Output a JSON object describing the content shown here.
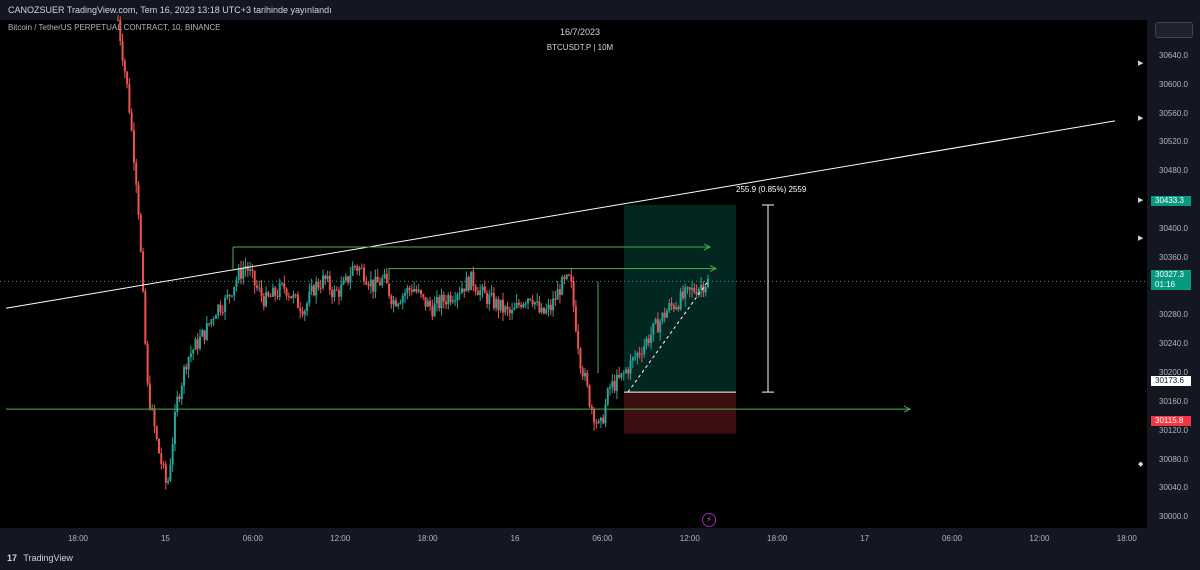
{
  "publisher_line": "CANOZSUER TradingView.com, Tem 16, 2023 13:18 UTC+3 tarihinde yayınlandı",
  "symbol_title": "Bitcoin / TetherUS PERPETUAL CONTRACT, 10, BINANCE",
  "center_date": "16/7/2023",
  "center_ticker": "BTCUSDT.P | 10M",
  "price_ticks": [
    "30640.0",
    "30600.0",
    "30560.0",
    "30520.0",
    "30480.0",
    "30440.0",
    "30400.0",
    "30360.0",
    "30320.0",
    "30280.0",
    "30240.0",
    "30200.0",
    "30160.0",
    "30120.0",
    "30080.0",
    "30040.0",
    "30000.0"
  ],
  "time_ticks": [
    "18:00",
    "15",
    "06:00",
    "12:00",
    "18:00",
    "16",
    "06:00",
    "12:00",
    "18:00",
    "17",
    "06:00",
    "12:00",
    "18:00"
  ],
  "price_labels": {
    "target": "30433.3",
    "current": "30327.3",
    "countdown": "01:16",
    "entry": "30173.6",
    "stop": "30115.8"
  },
  "measure_label": "255.9 (0.85%) 2559",
  "logo_text": "TradingView",
  "logo_glyph": "17",
  "bolt_glyph": "⚡",
  "colors": {
    "up": "#26a69a",
    "down": "#ef5350",
    "target_zone": "rgba(8,153,129,0.25)",
    "stop_zone": "rgba(242,54,69,0.25)",
    "arrow_green": "#4caf50",
    "trendline": "#ffffff"
  },
  "chart_data": {
    "type": "candlestick",
    "symbol": "BTCUSDT.P",
    "interval": "10",
    "ylim": [
      29985,
      30690
    ],
    "levels": {
      "resistance_arrow_1": 30375,
      "resistance_arrow_2": 30345,
      "support_line": 30150,
      "trendline_start": 30290,
      "trendline_end": 30550,
      "position_entry": 30173.6,
      "position_target": 30433.3,
      "position_stop": 30115.8
    },
    "close_path": [
      30690,
      30590,
      30450,
      30180,
      30100,
      30040,
      30160,
      30220,
      30240,
      30260,
      30290,
      30300,
      30330,
      30350,
      30320,
      30300,
      30310,
      30320,
      30300,
      30290,
      30320,
      30330,
      30310,
      30320,
      30350,
      30340,
      30320,
      30330,
      30300,
      30310,
      30320,
      30300,
      30290,
      30300,
      30310,
      30320,
      30330,
      30310,
      30300,
      30290,
      30280,
      30300,
      30310,
      30280,
      30290,
      30320,
      30330,
      30220,
      30160,
      30120,
      30180,
      30190,
      30210,
      30230,
      30250,
      30270,
      30290,
      30300,
      30310,
      30320,
      30327
    ]
  }
}
